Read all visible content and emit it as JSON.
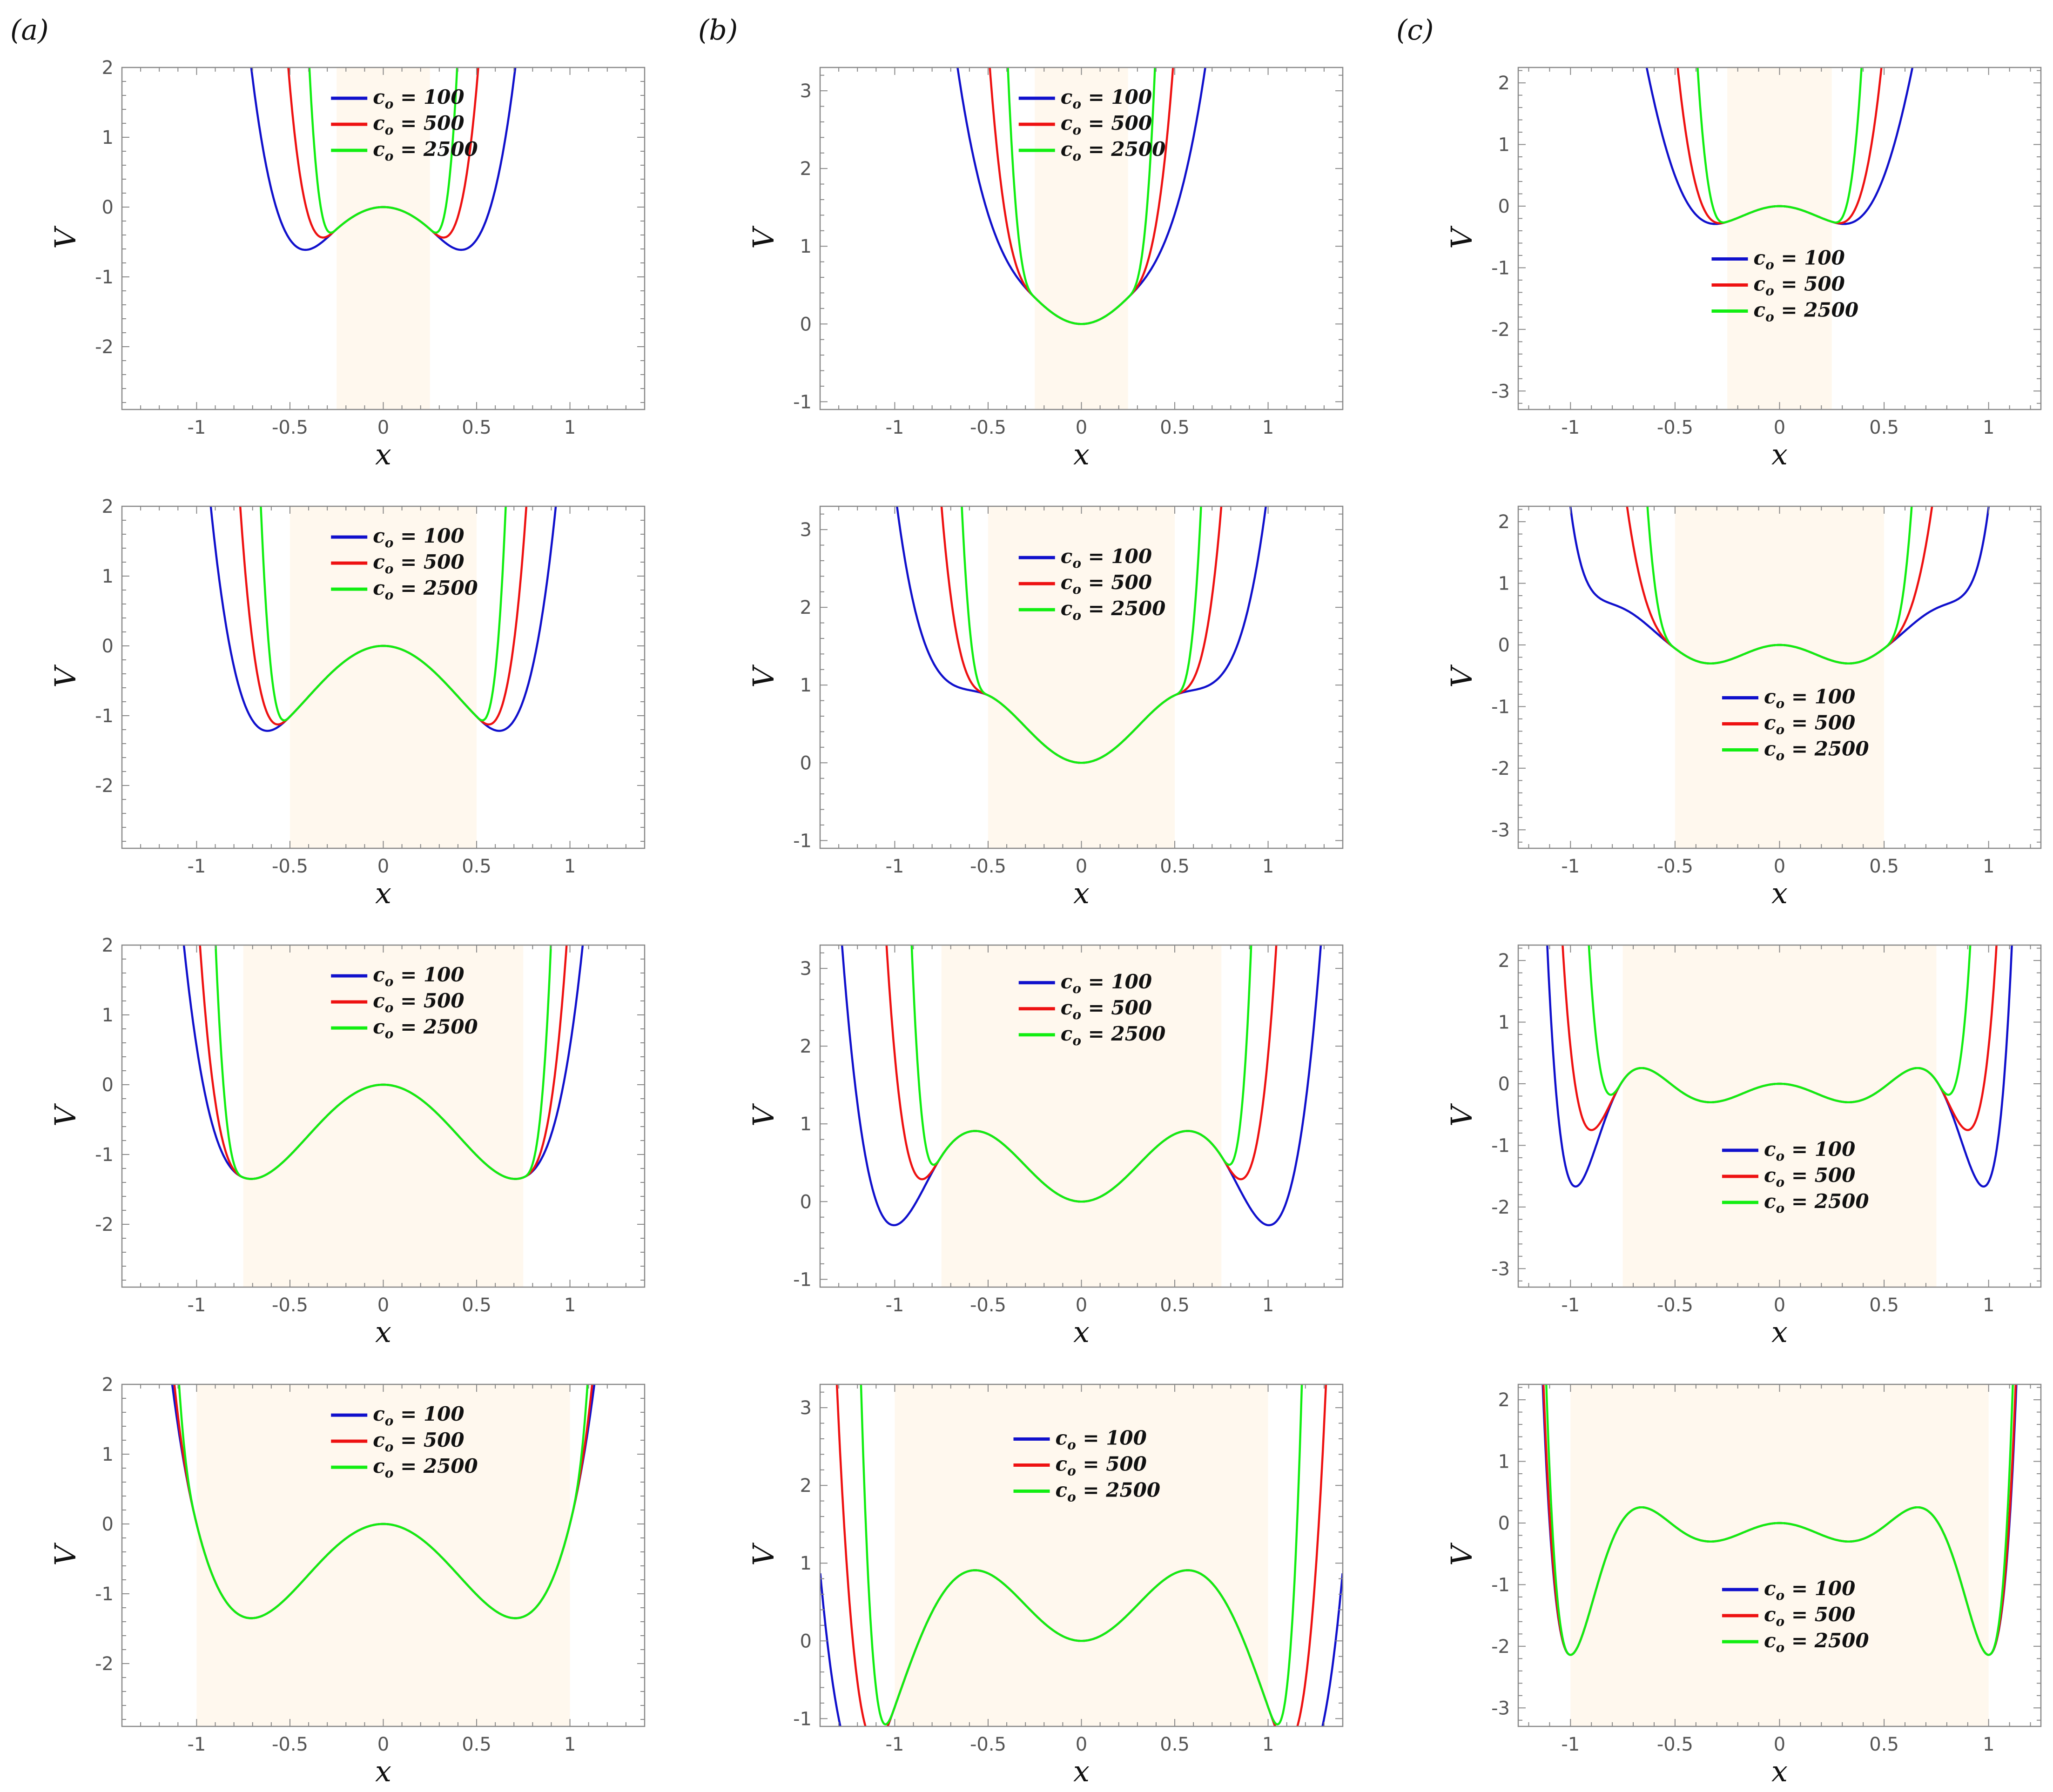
{
  "panel_labels": [
    "(a)",
    "(b)",
    "(c)"
  ],
  "legend": {
    "symbol": "c",
    "subscript": "o",
    "entries": [
      {
        "value_label": " = 100",
        "color": "#1010cc"
      },
      {
        "value_label": " = 500",
        "color": "#ee1111"
      },
      {
        "value_label": " = 2500",
        "color": "#11ee11"
      }
    ]
  },
  "colors": {
    "shade": "#fff8ee",
    "reference": "#000000",
    "axis": "#888888"
  },
  "chart_data": [
    {
      "type": "line",
      "column": "(a)",
      "row": 1,
      "xlabel": "x",
      "ylabel": "V",
      "xlim": [
        -1.4,
        1.4
      ],
      "ylim": [
        -2.9,
        2.0
      ],
      "xticks": [
        -1.0,
        -0.5,
        0.0,
        0.5,
        1.0
      ],
      "yticks": [
        2,
        1,
        0,
        -1,
        -2
      ],
      "shaded_region": [
        -0.25,
        0.25
      ],
      "series": [
        {
          "name": "c_o = 100",
          "color": "#1010cc"
        },
        {
          "name": "c_o = 500",
          "color": "#ee1111"
        },
        {
          "name": "c_o = 2500",
          "color": "#11ee11"
        },
        {
          "color": "#000000",
          "style": "dashed"
        }
      ]
    },
    {
      "type": "line",
      "column": "(a)",
      "row": 2,
      "xlabel": "x",
      "ylabel": "V",
      "xlim": [
        -1.4,
        1.4
      ],
      "ylim": [
        -2.9,
        2.0
      ],
      "xticks": [
        -1.0,
        -0.5,
        0.0,
        0.5,
        1.0
      ],
      "yticks": [
        2,
        1,
        0,
        -1,
        -2
      ],
      "shaded_region": [
        -0.5,
        0.5
      ],
      "series": [
        {
          "name": "c_o = 100",
          "color": "#1010cc"
        },
        {
          "name": "c_o = 500",
          "color": "#ee1111"
        },
        {
          "name": "c_o = 2500",
          "color": "#11ee11"
        },
        {
          "color": "#000000",
          "style": "dashed"
        }
      ]
    },
    {
      "type": "line",
      "column": "(a)",
      "row": 3,
      "xlabel": "x",
      "ylabel": "V",
      "xlim": [
        -1.4,
        1.4
      ],
      "ylim": [
        -2.9,
        2.0
      ],
      "xticks": [
        -1.0,
        -0.5,
        0.0,
        0.5,
        1.0
      ],
      "yticks": [
        2,
        1,
        0,
        -1,
        -2
      ],
      "shaded_region": [
        -0.75,
        0.75
      ],
      "series": [
        {
          "name": "c_o = 100",
          "color": "#1010cc"
        },
        {
          "name": "c_o = 500",
          "color": "#ee1111"
        },
        {
          "name": "c_o = 2500",
          "color": "#11ee11"
        },
        {
          "color": "#000000",
          "style": "dashed"
        }
      ]
    },
    {
      "type": "line",
      "column": "(a)",
      "row": 4,
      "xlabel": "x",
      "ylabel": "V",
      "xlim": [
        -1.4,
        1.4
      ],
      "ylim": [
        -2.9,
        2.0
      ],
      "xticks": [
        -1.0,
        -0.5,
        0.0,
        0.5,
        1.0
      ],
      "yticks": [
        2,
        1,
        0,
        -1,
        -2
      ],
      "shaded_region": [
        -1.0,
        1.0
      ],
      "series": [
        {
          "name": "c_o = 100",
          "color": "#1010cc"
        },
        {
          "name": "c_o = 500",
          "color": "#ee1111"
        },
        {
          "name": "c_o = 2500",
          "color": "#11ee11"
        },
        {
          "color": "#000000",
          "style": "dashed"
        }
      ]
    },
    {
      "type": "line",
      "column": "(b)",
      "row": 1,
      "xlabel": "x",
      "ylabel": "V",
      "xlim": [
        -1.4,
        1.4
      ],
      "ylim": [
        -1.1,
        3.3
      ],
      "xticks": [
        -1.0,
        -0.5,
        0.0,
        0.5,
        1.0
      ],
      "yticks": [
        3,
        2,
        1,
        0,
        -1
      ],
      "shaded_region": [
        -0.25,
        0.25
      ],
      "series": [
        {
          "name": "c_o = 100",
          "color": "#1010cc"
        },
        {
          "name": "c_o = 500",
          "color": "#ee1111"
        },
        {
          "name": "c_o = 2500",
          "color": "#11ee11"
        },
        {
          "color": "#000000",
          "style": "dashed"
        }
      ]
    },
    {
      "type": "line",
      "column": "(b)",
      "row": 2,
      "xlabel": "x",
      "ylabel": "V",
      "xlim": [
        -1.4,
        1.4
      ],
      "ylim": [
        -1.1,
        3.3
      ],
      "xticks": [
        -1.0,
        -0.5,
        0.0,
        0.5,
        1.0
      ],
      "yticks": [
        3,
        2,
        1,
        0,
        -1
      ],
      "shaded_region": [
        -0.5,
        0.5
      ],
      "series": [
        {
          "name": "c_o = 100",
          "color": "#1010cc"
        },
        {
          "name": "c_o = 500",
          "color": "#ee1111"
        },
        {
          "name": "c_o = 2500",
          "color": "#11ee11"
        },
        {
          "color": "#000000",
          "style": "dashed"
        }
      ]
    },
    {
      "type": "line",
      "column": "(b)",
      "row": 3,
      "xlabel": "x",
      "ylabel": "V",
      "xlim": [
        -1.4,
        1.4
      ],
      "ylim": [
        -1.1,
        3.3
      ],
      "xticks": [
        -1.0,
        -0.5,
        0.0,
        0.5,
        1.0
      ],
      "yticks": [
        3,
        2,
        1,
        0,
        -1
      ],
      "shaded_region": [
        -0.75,
        0.75
      ],
      "series": [
        {
          "name": "c_o = 100",
          "color": "#1010cc"
        },
        {
          "name": "c_o = 500",
          "color": "#ee1111"
        },
        {
          "name": "c_o = 2500",
          "color": "#11ee11"
        },
        {
          "color": "#000000",
          "style": "dashed"
        }
      ]
    },
    {
      "type": "line",
      "column": "(b)",
      "row": 4,
      "xlabel": "x",
      "ylabel": "V",
      "xlim": [
        -1.4,
        1.4
      ],
      "ylim": [
        -1.1,
        3.3
      ],
      "xticks": [
        -1.0,
        -0.5,
        0.0,
        0.5,
        1.0
      ],
      "yticks": [
        3,
        2,
        1,
        0,
        -1
      ],
      "shaded_region": [
        -1.0,
        1.0
      ],
      "series": [
        {
          "name": "c_o = 100",
          "color": "#1010cc"
        },
        {
          "name": "c_o = 500",
          "color": "#ee1111"
        },
        {
          "name": "c_o = 2500",
          "color": "#11ee11"
        },
        {
          "color": "#000000",
          "style": "dashed"
        }
      ]
    },
    {
      "type": "line",
      "column": "(c)",
      "row": 1,
      "xlabel": "x",
      "ylabel": "V",
      "xlim": [
        -1.25,
        1.25
      ],
      "ylim": [
        -3.3,
        2.25
      ],
      "xticks": [
        -1.0,
        -0.5,
        0.0,
        0.5,
        1.0
      ],
      "yticks": [
        2,
        1,
        0,
        -1,
        -2,
        -3
      ],
      "shaded_region": [
        -0.25,
        0.25
      ],
      "series": [
        {
          "name": "c_o = 100",
          "color": "#1010cc"
        },
        {
          "name": "c_o = 500",
          "color": "#ee1111"
        },
        {
          "name": "c_o = 2500",
          "color": "#11ee11"
        },
        {
          "color": "#000000",
          "style": "dashed"
        }
      ]
    },
    {
      "type": "line",
      "column": "(c)",
      "row": 2,
      "xlabel": "x",
      "ylabel": "V",
      "xlim": [
        -1.25,
        1.25
      ],
      "ylim": [
        -3.3,
        2.25
      ],
      "xticks": [
        -1.0,
        -0.5,
        0.0,
        0.5,
        1.0
      ],
      "yticks": [
        2,
        1,
        0,
        -1,
        -2,
        -3
      ],
      "shaded_region": [
        -0.5,
        0.5
      ],
      "series": [
        {
          "name": "c_o = 100",
          "color": "#1010cc"
        },
        {
          "name": "c_o = 500",
          "color": "#ee1111"
        },
        {
          "name": "c_o = 2500",
          "color": "#11ee11"
        },
        {
          "color": "#000000",
          "style": "dashed"
        }
      ]
    },
    {
      "type": "line",
      "column": "(c)",
      "row": 3,
      "xlabel": "x",
      "ylabel": "V",
      "xlim": [
        -1.25,
        1.25
      ],
      "ylim": [
        -3.3,
        2.25
      ],
      "xticks": [
        -1.0,
        -0.5,
        0.0,
        0.5,
        1.0
      ],
      "yticks": [
        2,
        1,
        0,
        -1,
        -2,
        -3
      ],
      "shaded_region": [
        -0.75,
        0.75
      ],
      "series": [
        {
          "name": "c_o = 100",
          "color": "#1010cc"
        },
        {
          "name": "c_o = 500",
          "color": "#ee1111"
        },
        {
          "name": "c_o = 2500",
          "color": "#11ee11"
        },
        {
          "color": "#000000",
          "style": "dashed"
        }
      ]
    },
    {
      "type": "line",
      "column": "(c)",
      "row": 4,
      "xlabel": "x",
      "ylabel": "V",
      "xlim": [
        -1.25,
        1.25
      ],
      "ylim": [
        -3.3,
        2.25
      ],
      "xticks": [
        -1.0,
        -0.5,
        0.0,
        0.5,
        1.0
      ],
      "yticks": [
        2,
        1,
        0,
        -1,
        -2,
        -3
      ],
      "shaded_region": [
        -1.0,
        1.0
      ],
      "series": [
        {
          "name": "c_o = 100",
          "color": "#1010cc"
        },
        {
          "name": "c_o = 500",
          "color": "#ee1111"
        },
        {
          "name": "c_o = 2500",
          "color": "#11ee11"
        },
        {
          "color": "#000000",
          "style": "dashed"
        }
      ]
    }
  ]
}
